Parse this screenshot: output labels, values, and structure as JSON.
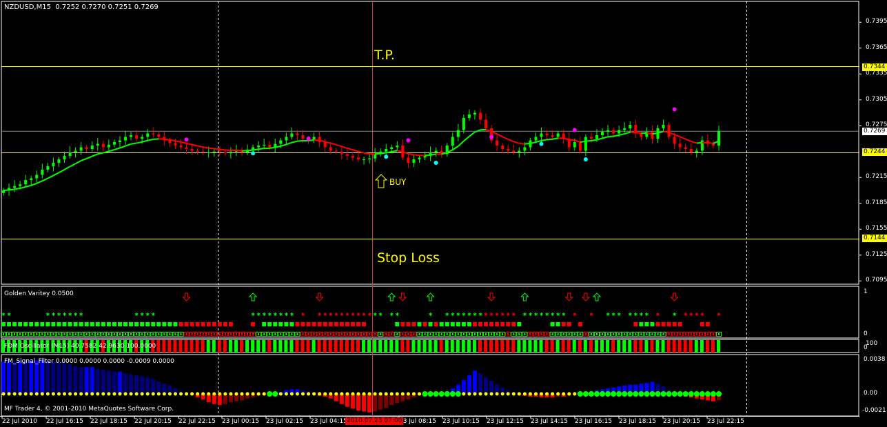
{
  "header": {
    "symbol": "NZDUSD,M15",
    "ohlc": "0.7252 0.7270 0.7251 0.7269"
  },
  "annotations": {
    "tp": "T.P.",
    "stop_loss": "Stop Loss",
    "buy": "BUY"
  },
  "price_axis": [
    "0.7395",
    "0.7365",
    "0.7335",
    "0.7305",
    "0.7275",
    "0.7215",
    "0.7185",
    "0.7155",
    "0.7125",
    "0.7095"
  ],
  "price_tags": {
    "tp": "0.7344",
    "bid": "0.7269",
    "entry": "0.7244",
    "sl": "0.7144"
  },
  "colors": {
    "bull": "#00ff00",
    "bear": "#ff0000",
    "level": "#ffff00",
    "grid": "#ffffff",
    "bid_line": "#808a94",
    "blue": "#0000ff",
    "navy": "#00007f",
    "dark_red": "#7f0000"
  },
  "golden": {
    "title": "Golden Varitey 0.0500",
    "axis_top": "1",
    "axis_bottom": "0"
  },
  "fdm": {
    "title": "FDM Oscillator (M15) 40.7582 42.9630 100.0000",
    "axis_top": "100",
    "axis_bottom": "0"
  },
  "fm": {
    "title": "FM_Signal_Filter 0.0000 0.0000 0.0000 -0.0009 0.0000",
    "axis_top": "0.0038",
    "axis_mid": "0.00",
    "axis_bottom": "-0.0021"
  },
  "copyright": "MF Trader 4, © 2001-2010 MetaQuotes Software Corp.",
  "time_axis": [
    "22 Jul 2010",
    "22 Jul 16:15",
    "22 Jul 18:15",
    "22 Jul 20:15",
    "22 Jul 22:15",
    "23 Jul 00:15",
    "23 Jul 02:15",
    "23 Jul 04:15",
    "23 Jul 08:15",
    "23 Jul 10:15",
    "23 Jul 12:15",
    "23 Jul 14:15",
    "23 Jul 16:15",
    "23 Jul 18:15",
    "23 Jul 20:15",
    "23 Jul 22:15"
  ],
  "time_highlight": "2010.07.23 07:00",
  "chart_data": {
    "type": "candlestick",
    "ylim": [
      0.708,
      0.742
    ],
    "closes": [
      0.72,
      0.7203,
      0.7205,
      0.7207,
      0.7212,
      0.7214,
      0.7218,
      0.7224,
      0.7228,
      0.7232,
      0.7236,
      0.724,
      0.7244,
      0.7246,
      0.725,
      0.7248,
      0.7252,
      0.7254,
      0.725,
      0.7253,
      0.7256,
      0.7258,
      0.7262,
      0.7264,
      0.726,
      0.7262,
      0.7266,
      0.7265,
      0.7262,
      0.7258,
      0.7255,
      0.7252,
      0.725,
      0.7248,
      0.7246,
      0.7245,
      0.7244,
      0.7244,
      0.7245,
      0.7244,
      0.7243,
      0.7245,
      0.7246,
      0.7244,
      0.7247,
      0.725,
      0.7252,
      0.7253,
      0.725,
      0.7254,
      0.7258,
      0.7262,
      0.7266,
      0.7264,
      0.726,
      0.7258,
      0.7262,
      0.7256,
      0.725,
      0.7246,
      0.7245,
      0.7242,
      0.724,
      0.7238,
      0.7236,
      0.7236,
      0.7237,
      0.7242,
      0.7245,
      0.7248,
      0.725,
      0.7252,
      0.7238,
      0.7232,
      0.7236,
      0.7238,
      0.724,
      0.7244,
      0.7246,
      0.7242,
      0.7252,
      0.7262,
      0.727,
      0.7284,
      0.7288,
      0.729,
      0.7282,
      0.7272,
      0.7258,
      0.7252,
      0.7248,
      0.7246,
      0.7244,
      0.7246,
      0.725,
      0.7258,
      0.7262,
      0.7266,
      0.7264,
      0.7262,
      0.7266,
      0.726,
      0.725,
      0.7256,
      0.7246,
      0.7262,
      0.726,
      0.7264,
      0.7268,
      0.727,
      0.7266,
      0.727,
      0.7272,
      0.7276,
      0.7266,
      0.7262,
      0.7268,
      0.726,
      0.7272,
      0.7276,
      0.7262,
      0.7254,
      0.725,
      0.7248,
      0.7244,
      0.7246,
      0.7258,
      0.7254,
      0.7252,
      0.7269
    ],
    "levels": [
      {
        "name": "tp",
        "price": 0.7344
      },
      {
        "name": "entry",
        "price": 0.7244
      },
      {
        "name": "sl",
        "price": 0.7144
      }
    ],
    "bid": 0.7269,
    "magenta_dots": [
      {
        "bar": 33,
        "price": 0.7259
      },
      {
        "bar": 55,
        "price": 0.726
      },
      {
        "bar": 73,
        "price": 0.7258
      },
      {
        "bar": 88,
        "price": 0.7262
      },
      {
        "bar": 103,
        "price": 0.727
      },
      {
        "bar": 121,
        "price": 0.7294
      }
    ],
    "cyan_dots": [
      {
        "bar": 45,
        "price": 0.7243
      },
      {
        "bar": 69,
        "price": 0.7239
      },
      {
        "bar": 78,
        "price": 0.7232
      },
      {
        "bar": 97,
        "price": 0.7254
      },
      {
        "bar": 105,
        "price": 0.7236
      }
    ],
    "golden_boxes": "gggggggggggggggggggggggggggggggggrrrrrrrrrrrrrggggggggrrrrrrrrrrrrrrgrrgrrrggggggggggggggggrgggrrrrggggggrggggggggggggggrrrrrrrrrg",
    "golden_squares": "ggggggggggggggggggggggggggggggggrrrrrrrrrr...r.ggggggrrrrrrrrrrrrr.....grrrgrgrggggggrrrrrrrrg.....ggrr.r.........rgggrrrrr...rr...",
    "golden_stars": "gg......ggggggg.........gggg.................gggggggg.r..rrrrrrrrrrgg.gg.....g..gggggggrrrrrr.gggggggg.r..r..ggg.gggg.r..g.rrrr..rr.",
    "golden_arrows": [
      {
        "bar": 33,
        "dir": "down"
      },
      {
        "bar": 45,
        "dir": "up"
      },
      {
        "bar": 57,
        "dir": "down"
      },
      {
        "bar": 70,
        "dir": "up"
      },
      {
        "bar": 72,
        "dir": "down"
      },
      {
        "bar": 77,
        "dir": "up"
      },
      {
        "bar": 88,
        "dir": "down"
      },
      {
        "bar": 94,
        "dir": "up"
      },
      {
        "bar": 102,
        "dir": "down"
      },
      {
        "bar": 105,
        "dir": "down"
      },
      {
        "bar": 107,
        "dir": "up"
      },
      {
        "bar": 121,
        "dir": "down"
      }
    ],
    "fm_ylim": [
      -0.0021,
      0.0038
    ],
    "fm_values": [
      0.0035,
      0.0036,
      0.0035,
      0.0036,
      0.0035,
      0.0036,
      0.0036,
      0.0037,
      0.0036,
      0.0035,
      0.0034,
      0.0033,
      0.0032,
      0.003,
      0.0029,
      0.0029,
      0.0029,
      0.0027,
      0.0026,
      0.0025,
      0.0024,
      0.0024,
      0.0022,
      0.0021,
      0.002,
      0.0019,
      0.0018,
      0.0016,
      0.0013,
      0.0011,
      0.0009,
      0.0006,
      0.0003,
      0.0001,
      -0.0001,
      -0.0004,
      -0.0006,
      -0.0009,
      -0.0011,
      -0.0012,
      -0.0011,
      -0.0009,
      -0.0008,
      -0.0007,
      -0.0005,
      -0.0004,
      -0.0002,
      -0.0001,
      0.0,
      0.0,
      0.0002,
      0.0004,
      0.0005,
      0.0005,
      0.0004,
      0.0003,
      0.0002,
      -0.0002,
      -0.0003,
      -0.0005,
      -0.0008,
      -0.0011,
      -0.0014,
      -0.0016,
      -0.0018,
      -0.0019,
      -0.002,
      -0.0019,
      -0.0017,
      -0.0015,
      -0.0012,
      -0.001,
      -0.0008,
      -0.0006,
      -0.0004,
      -0.0002,
      0.0,
      0.0,
      0.0,
      0.0001,
      0.0003,
      0.0006,
      0.001,
      0.0015,
      0.002,
      0.0025,
      0.0022,
      0.0018,
      0.0014,
      0.001,
      0.0007,
      0.0004,
      0.0002,
      -0.0001,
      -0.0002,
      -0.0003,
      -0.0003,
      -0.0004,
      -0.0004,
      -0.0004,
      -0.0003,
      -0.0003,
      -0.0002,
      -0.0001,
      0.0001,
      0.0002,
      0.0003,
      0.0004,
      0.0005,
      0.0006,
      0.0007,
      0.0008,
      0.0009,
      0.001,
      0.001,
      0.0011,
      0.0012,
      0.0013,
      0.0011,
      0.0008,
      0.0004,
      -0.0001,
      -0.0002,
      -0.0003,
      -0.0004,
      -0.0005,
      -0.0006,
      -0.0007,
      -0.0008,
      -0.0007
    ],
    "fm_green_dot_ranges": [
      [
        48,
        49
      ],
      [
        76,
        82
      ],
      [
        104,
        129
      ]
    ]
  }
}
